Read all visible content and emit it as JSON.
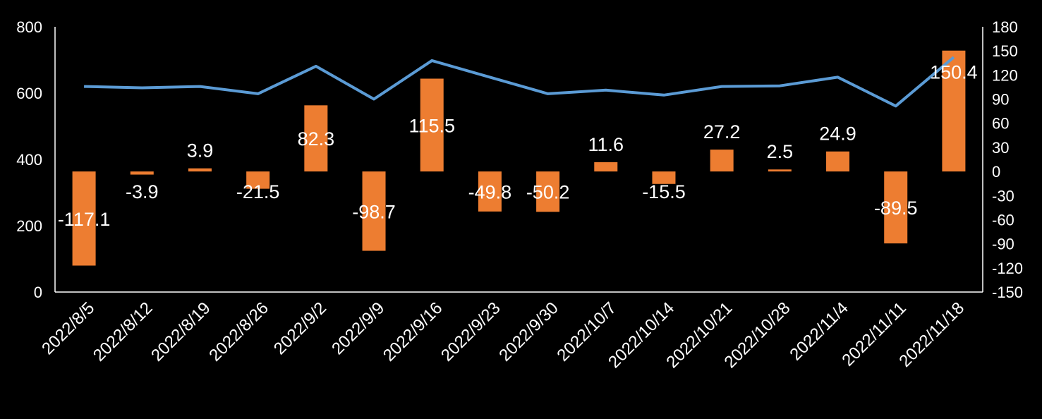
{
  "chart_data": {
    "type": "bar+line",
    "categories": [
      "2022/8/5",
      "2022/8/12",
      "2022/8/19",
      "2022/8/26",
      "2022/9/2",
      "2022/9/9",
      "2022/9/16",
      "2022/9/23",
      "2022/9/30",
      "2022/10/7",
      "2022/10/14",
      "2022/10/21",
      "2022/10/28",
      "2022/11/4",
      "2022/11/11",
      "2022/11/18"
    ],
    "series": [
      {
        "kind": "bar",
        "axis": "right",
        "color": "#ED7D31",
        "values": [
          -117.1,
          -3.9,
          3.9,
          -21.5,
          82.3,
          -98.7,
          115.5,
          -49.8,
          -50.2,
          11.6,
          -15.5,
          27.2,
          2.5,
          24.9,
          -89.5,
          150.4
        ],
        "labels": [
          "-117.1",
          "-3.9",
          "3.9",
          "-21.5",
          "82.3",
          "-98.7",
          "115.5",
          "-49.8",
          "-50.2",
          "11.6",
          "-15.5",
          "27.2",
          "2.5",
          "24.9",
          "-89.5",
          "150.4"
        ]
      },
      {
        "kind": "line",
        "axis": "left",
        "color": "#5B9BD5",
        "values": [
          620,
          616,
          620,
          598,
          681,
          582,
          698,
          648,
          598,
          609,
          594,
          620,
          622,
          648,
          561,
          708
        ]
      }
    ],
    "left_axis": {
      "min": 0,
      "max": 800,
      "ticks": [
        "0",
        "200",
        "400",
        "600",
        "800"
      ]
    },
    "right_axis": {
      "min": -150,
      "max": 180,
      "ticks": [
        "-150",
        "-120",
        "-90",
        "-60",
        "-30",
        "0",
        "30",
        "60",
        "90",
        "120",
        "150",
        "180"
      ]
    },
    "grid": false,
    "legend": "none"
  }
}
